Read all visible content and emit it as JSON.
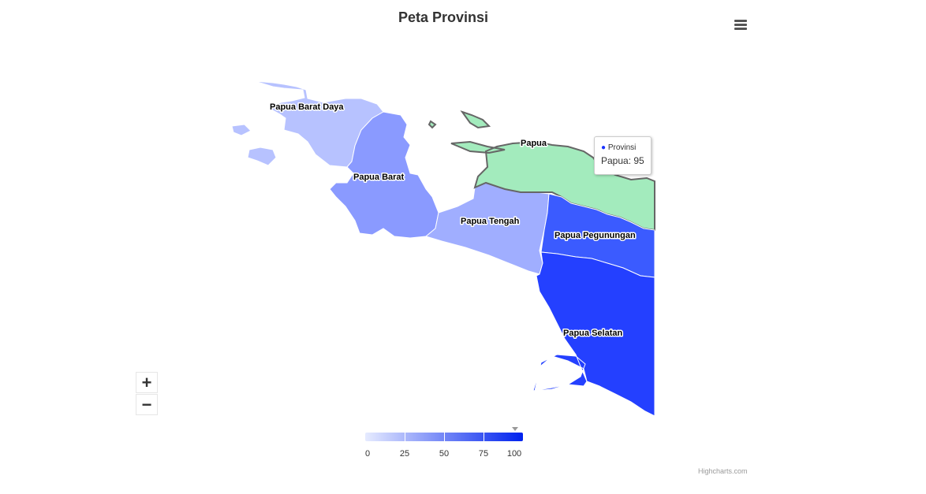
{
  "title": "Peta Provinsi",
  "menu_icon": "hamburger-menu-icon",
  "regions": [
    {
      "name": "Papua Barat Daya",
      "value": 20,
      "color": "#b7c2ff"
    },
    {
      "name": "Papua Barat",
      "value": 40,
      "color": "#8a9aff"
    },
    {
      "name": "Papua Tengah",
      "value": 30,
      "color": "#a0aeff"
    },
    {
      "name": "Papua",
      "value": 95,
      "color": "#a3ebbd"
    },
    {
      "name": "Papua Pegunungan",
      "value": 75,
      "color": "#3b5bff"
    },
    {
      "name": "Papua Selatan",
      "value": 85,
      "color": "#2440ff"
    }
  ],
  "tooltip": {
    "series": "Provinsi",
    "text": "Papua: 95"
  },
  "legend": {
    "ticks": [
      "0",
      "25",
      "50",
      "75",
      "100"
    ],
    "min_color": "#e6ebff",
    "max_color": "#0022ee",
    "marker_value": 95
  },
  "zoom": {
    "in_icon": "plus-icon",
    "out_icon": "minus-icon"
  },
  "credits": "Highcharts.com"
}
